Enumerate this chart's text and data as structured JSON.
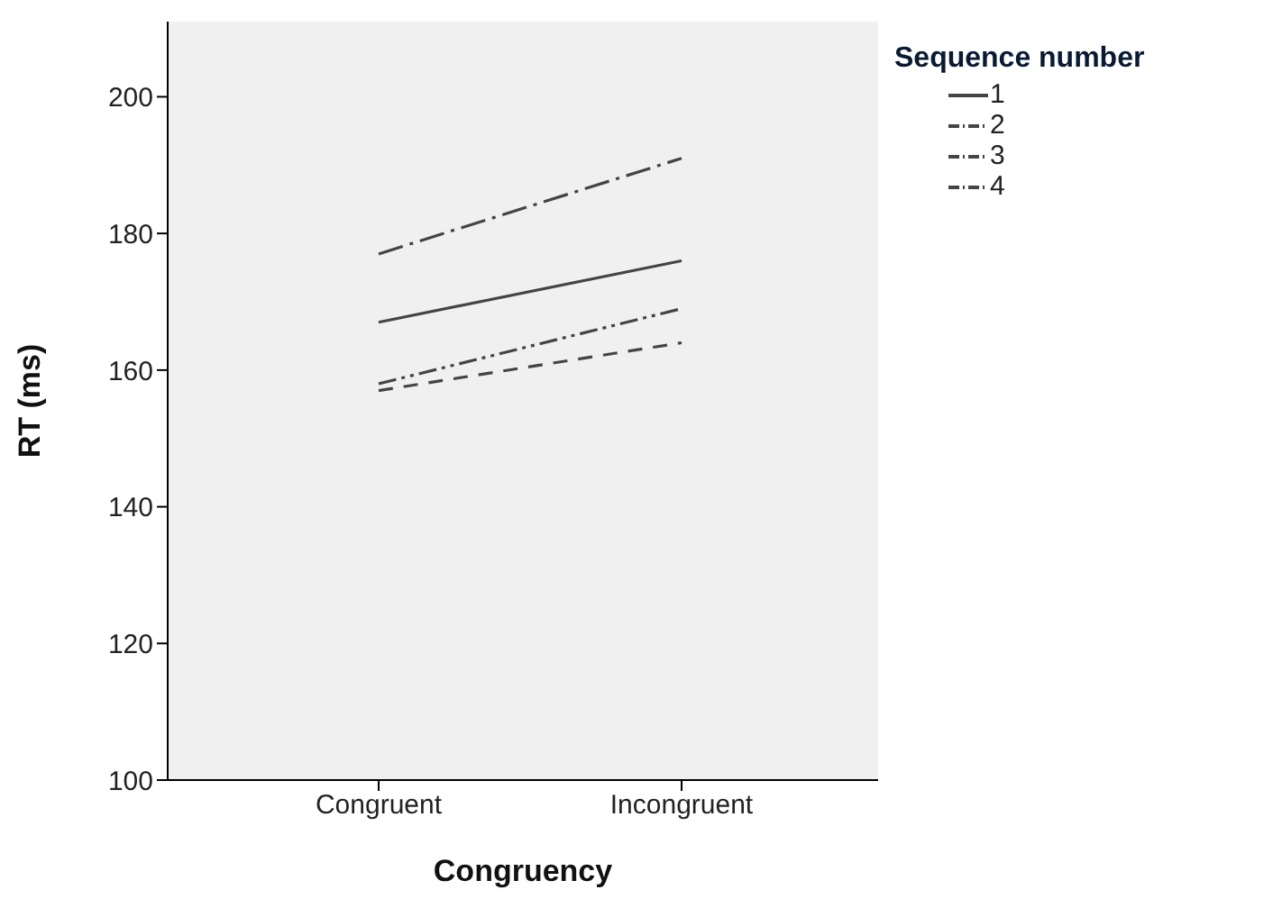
{
  "chart_data": {
    "type": "line",
    "xlabel": "Congruency",
    "ylabel": "RT (ms)",
    "legend_title": "Sequence number",
    "categories": [
      "Congruent",
      "Incongruent"
    ],
    "series": [
      {
        "name": "1",
        "color": "#444444",
        "values": [
          167,
          176
        ],
        "line_style": "solid"
      },
      {
        "name": "2",
        "color": "#444444",
        "values": [
          177,
          191
        ],
        "line_style": "dashed"
      },
      {
        "name": "3",
        "color": "#444444",
        "values": [
          157,
          164
        ],
        "line_style": "dashed"
      },
      {
        "name": "4",
        "color": "#444444",
        "values": [
          158,
          169
        ],
        "line_style": "dotted"
      }
    ],
    "ylim": [
      100,
      211
    ],
    "yticks": [
      100,
      120,
      140,
      160,
      180,
      200
    ],
    "grid": false,
    "legend": "right",
    "marker": "none"
  }
}
